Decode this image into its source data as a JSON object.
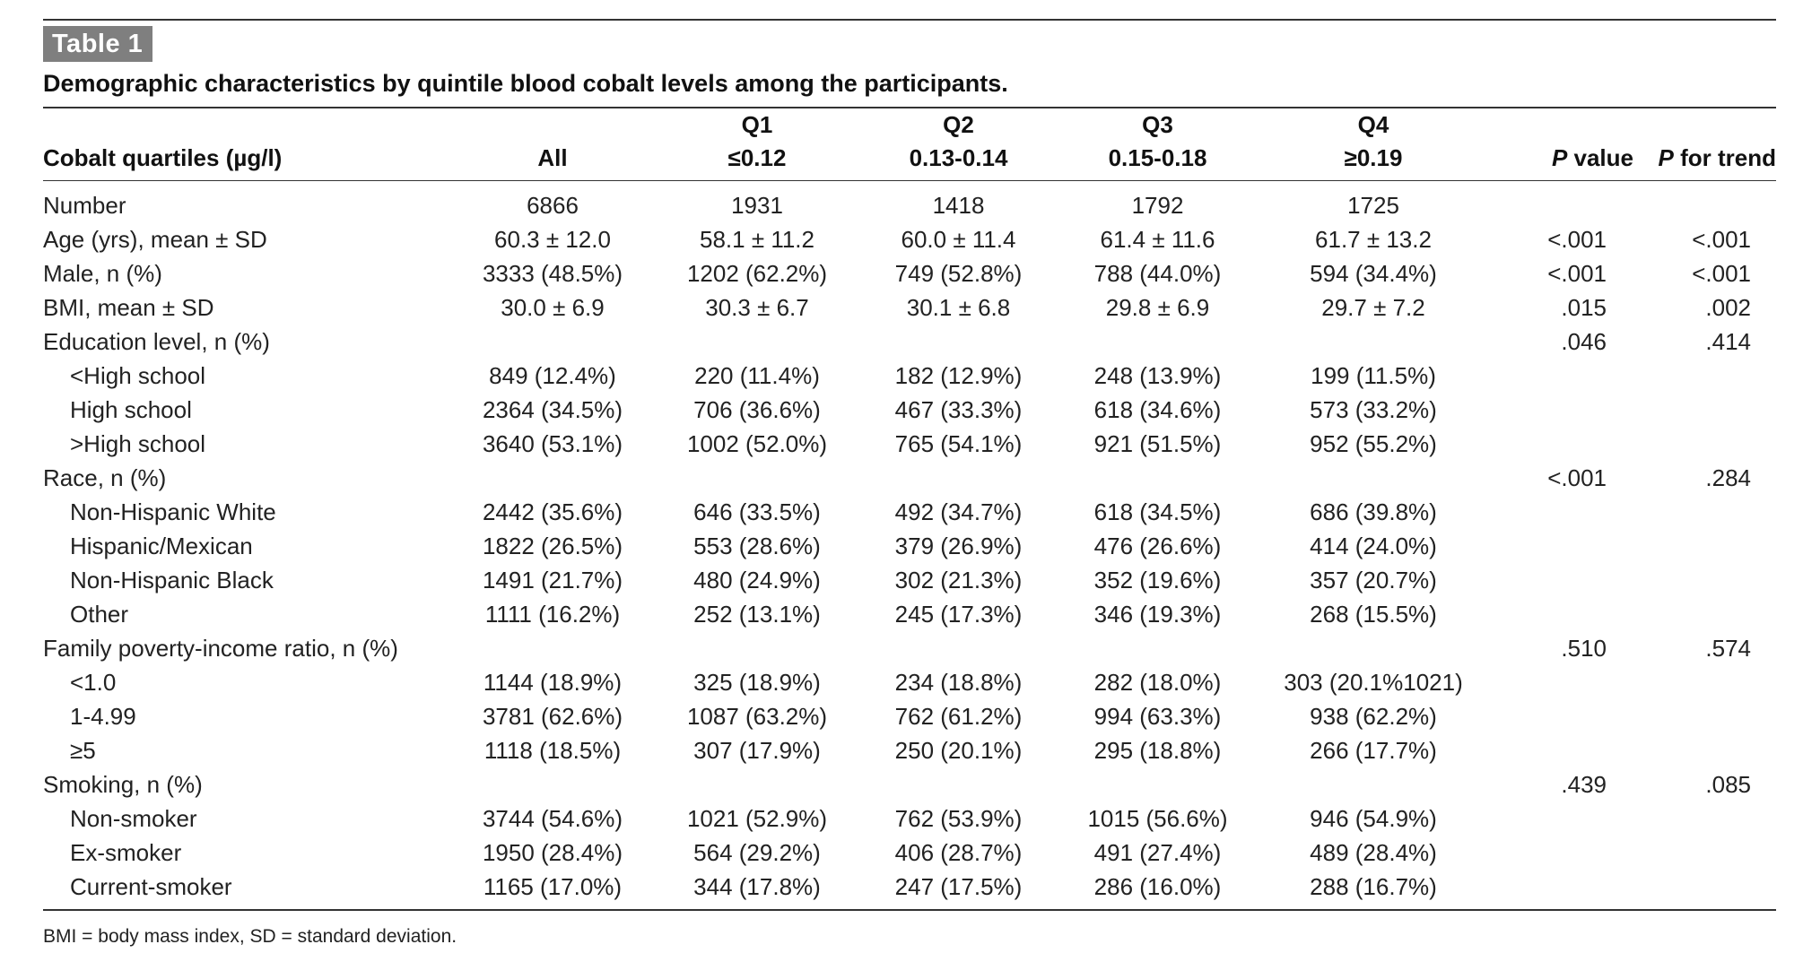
{
  "table_label": "Table 1",
  "caption": "Demographic characteristics by quintile blood cobalt levels among the participants.",
  "header": {
    "col_label": "Cobalt quartiles (µg/l)",
    "all": "All",
    "q1_name": "Q1",
    "q1_range": "≤0.12",
    "q2_name": "Q2",
    "q2_range": "0.13-0.14",
    "q3_name": "Q3",
    "q3_range": "0.15-0.18",
    "q4_name": "Q4",
    "q4_range": "≥0.19",
    "p_value_italic": "P",
    "p_value_rest": " value",
    "p_trend_italic": "P",
    "p_trend_rest": " for trend"
  },
  "rows": [
    {
      "label": "Number",
      "indent": false,
      "all": "6866",
      "q1": "1931",
      "q2": "1418",
      "q3": "1792",
      "q4": "1725",
      "p": "",
      "pt": ""
    },
    {
      "label": "Age (yrs), mean ± SD",
      "indent": false,
      "all": "60.3 ± 12.0",
      "q1": "58.1 ± 11.2",
      "q2": "60.0 ± 11.4",
      "q3": "61.4 ± 11.6",
      "q4": "61.7 ± 13.2",
      "p": "<.001",
      "pt": "<.001"
    },
    {
      "label": "Male, n (%)",
      "indent": false,
      "all": "3333 (48.5%)",
      "q1": "1202 (62.2%)",
      "q2": "749 (52.8%)",
      "q3": "788 (44.0%)",
      "q4": "594 (34.4%)",
      "p": "<.001",
      "pt": "<.001"
    },
    {
      "label": "BMI, mean ± SD",
      "indent": false,
      "all": "30.0 ± 6.9",
      "q1": "30.3 ± 6.7",
      "q2": "30.1 ± 6.8",
      "q3": "29.8 ± 6.9",
      "q4": "29.7 ± 7.2",
      "p": ".015",
      "pt": ".002"
    },
    {
      "label": "Education level, n (%)",
      "indent": false,
      "all": "",
      "q1": "",
      "q2": "",
      "q3": "",
      "q4": "",
      "p": ".046",
      "pt": ".414"
    },
    {
      "label": "<High school",
      "indent": true,
      "all": "849 (12.4%)",
      "q1": "220 (11.4%)",
      "q2": "182 (12.9%)",
      "q3": "248 (13.9%)",
      "q4": "199 (11.5%)",
      "p": "",
      "pt": ""
    },
    {
      "label": "High school",
      "indent": true,
      "all": "2364 (34.5%)",
      "q1": "706 (36.6%)",
      "q2": "467 (33.3%)",
      "q3": "618 (34.6%)",
      "q4": "573 (33.2%)",
      "p": "",
      "pt": ""
    },
    {
      "label": ">High school",
      "indent": true,
      "all": "3640 (53.1%)",
      "q1": "1002 (52.0%)",
      "q2": "765 (54.1%)",
      "q3": "921 (51.5%)",
      "q4": "952 (55.2%)",
      "p": "",
      "pt": ""
    },
    {
      "label": "Race, n (%)",
      "indent": false,
      "all": "",
      "q1": "",
      "q2": "",
      "q3": "",
      "q4": "",
      "p": "<.001",
      "pt": ".284"
    },
    {
      "label": "Non-Hispanic White",
      "indent": true,
      "all": "2442 (35.6%)",
      "q1": "646 (33.5%)",
      "q2": "492 (34.7%)",
      "q3": "618 (34.5%)",
      "q4": "686 (39.8%)",
      "p": "",
      "pt": ""
    },
    {
      "label": "Hispanic/Mexican",
      "indent": true,
      "all": "1822 (26.5%)",
      "q1": "553 (28.6%)",
      "q2": "379 (26.9%)",
      "q3": "476 (26.6%)",
      "q4": "414 (24.0%)",
      "p": "",
      "pt": ""
    },
    {
      "label": "Non-Hispanic Black",
      "indent": true,
      "all": "1491 (21.7%)",
      "q1": "480 (24.9%)",
      "q2": "302 (21.3%)",
      "q3": "352 (19.6%)",
      "q4": "357 (20.7%)",
      "p": "",
      "pt": ""
    },
    {
      "label": "Other",
      "indent": true,
      "all": "1111 (16.2%)",
      "q1": "252 (13.1%)",
      "q2": "245 (17.3%)",
      "q3": "346 (19.3%)",
      "q4": "268 (15.5%)",
      "p": "",
      "pt": ""
    },
    {
      "label": "Family poverty-income ratio, n (%)",
      "indent": false,
      "all": "",
      "q1": "",
      "q2": "",
      "q3": "",
      "q4": "",
      "p": ".510",
      "pt": ".574"
    },
    {
      "label": "<1.0",
      "indent": true,
      "all": "1144 (18.9%)",
      "q1": "325 (18.9%)",
      "q2": "234 (18.8%)",
      "q3": "282 (18.0%)",
      "q4": "303 (20.1%1021)",
      "p": "",
      "pt": ""
    },
    {
      "label": "1-4.99",
      "indent": true,
      "all": "3781 (62.6%)",
      "q1": "1087 (63.2%)",
      "q2": "762 (61.2%)",
      "q3": "994 (63.3%)",
      "q4": "938 (62.2%)",
      "p": "",
      "pt": ""
    },
    {
      "label": "≥5",
      "indent": true,
      "all": "1118 (18.5%)",
      "q1": "307 (17.9%)",
      "q2": "250 (20.1%)",
      "q3": "295 (18.8%)",
      "q4": "266 (17.7%)",
      "p": "",
      "pt": ""
    },
    {
      "label": "Smoking, n (%)",
      "indent": false,
      "all": "",
      "q1": "",
      "q2": "",
      "q3": "",
      "q4": "",
      "p": ".439",
      "pt": ".085"
    },
    {
      "label": "Non-smoker",
      "indent": true,
      "all": "3744 (54.6%)",
      "q1": "1021 (52.9%)",
      "q2": "762 (53.9%)",
      "q3": "1015 (56.6%)",
      "q4": "946 (54.9%)",
      "p": "",
      "pt": ""
    },
    {
      "label": "Ex-smoker",
      "indent": true,
      "all": "1950 (28.4%)",
      "q1": "564 (29.2%)",
      "q2": "406 (28.7%)",
      "q3": "491 (27.4%)",
      "q4": "489 (28.4%)",
      "p": "",
      "pt": ""
    },
    {
      "label": "Current-smoker",
      "indent": true,
      "all": "1165 (17.0%)",
      "q1": "344 (17.8%)",
      "q2": "247 (17.5%)",
      "q3": "286 (16.0%)",
      "q4": "288 (16.7%)",
      "p": "",
      "pt": ""
    }
  ],
  "footnote": "BMI = body mass index, SD = standard deviation."
}
